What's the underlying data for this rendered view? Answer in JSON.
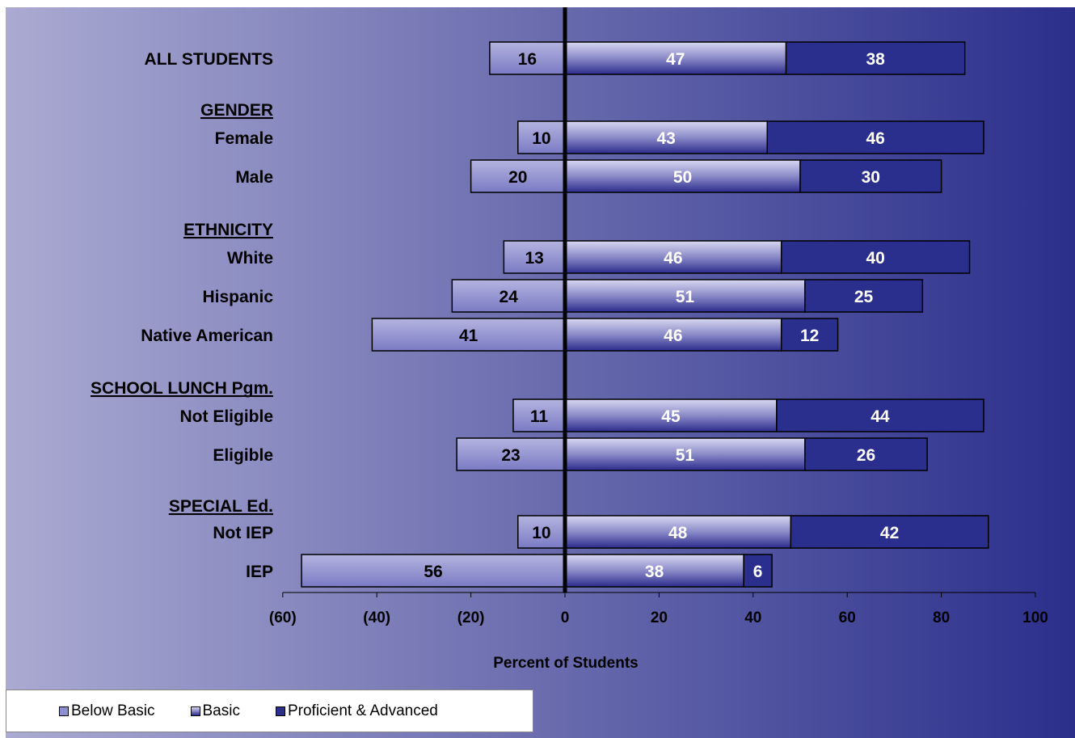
{
  "chart_data": {
    "type": "bar",
    "orientation": "horizontal",
    "stacked": true,
    "xlabel": "Percent of Students",
    "xlim": [
      -60,
      100
    ],
    "xticks": [
      {
        "value": -60,
        "label": "(60)"
      },
      {
        "value": -40,
        "label": "(40)"
      },
      {
        "value": -20,
        "label": "(20)"
      },
      {
        "value": 0,
        "label": "0"
      },
      {
        "value": 20,
        "label": "20"
      },
      {
        "value": 40,
        "label": "40"
      },
      {
        "value": 60,
        "label": "60"
      },
      {
        "value": 80,
        "label": "80"
      },
      {
        "value": 100,
        "label": "100"
      }
    ],
    "rows": [
      {
        "kind": "category",
        "label": "ALL STUDENTS",
        "below_basic": 16,
        "basic": 47,
        "proficient": 38
      },
      {
        "kind": "group",
        "label": "GENDER"
      },
      {
        "kind": "category",
        "label": "Female",
        "below_basic": 10,
        "basic": 43,
        "proficient": 46
      },
      {
        "kind": "category",
        "label": "Male",
        "below_basic": 20,
        "basic": 50,
        "proficient": 30
      },
      {
        "kind": "group",
        "label": "ETHNICITY"
      },
      {
        "kind": "category",
        "label": "White",
        "below_basic": 13,
        "basic": 46,
        "proficient": 40
      },
      {
        "kind": "category",
        "label": "Hispanic",
        "below_basic": 24,
        "basic": 51,
        "proficient": 25
      },
      {
        "kind": "category",
        "label": "Native American",
        "below_basic": 41,
        "basic": 46,
        "proficient": 12
      },
      {
        "kind": "group",
        "label": "SCHOOL LUNCH Pgm."
      },
      {
        "kind": "category",
        "label": "Not Eligible",
        "below_basic": 11,
        "basic": 45,
        "proficient": 44
      },
      {
        "kind": "category",
        "label": "Eligible",
        "below_basic": 23,
        "basic": 51,
        "proficient": 26
      },
      {
        "kind": "group",
        "label": "SPECIAL Ed."
      },
      {
        "kind": "category",
        "label": "Not IEP",
        "below_basic": 10,
        "basic": 48,
        "proficient": 42
      },
      {
        "kind": "category",
        "label": "IEP",
        "below_basic": 56,
        "basic": 38,
        "proficient": 6
      }
    ],
    "legend": {
      "placement": "bottom-left",
      "entries": [
        {
          "key": "below_basic",
          "label": "Below Basic"
        },
        {
          "key": "basic",
          "label": "Basic"
        },
        {
          "key": "proficient",
          "label": "Proficient & Advanced"
        }
      ]
    },
    "colors": {
      "below_basic": "#8e8ed0",
      "basic_light": "#d8d8f2",
      "basic_dark": "#2c2c8c",
      "proficient": "#2a2f8e",
      "background_left": "#aaaad2",
      "background_right": "#2b2f8b"
    }
  }
}
